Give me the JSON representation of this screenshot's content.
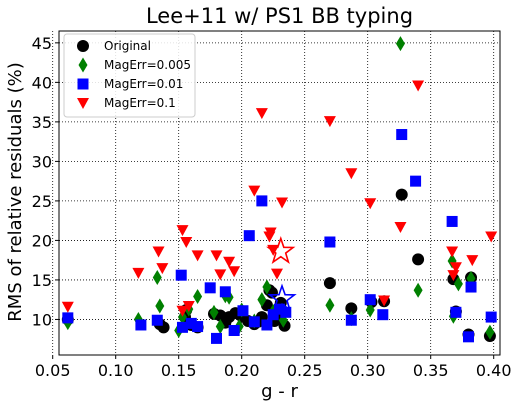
{
  "chart_data": {
    "type": "scatter",
    "title": "Lee+11 w/ PS1 BB typing",
    "xlabel": "g - r",
    "ylabel": "RMS of relative residuals (%)",
    "xlim": [
      0.055,
      0.405
    ],
    "ylim": [
      5.5,
      46.5
    ],
    "xticks": [
      "0.05",
      "0.10",
      "0.15",
      "0.20",
      "0.25",
      "0.30",
      "0.35",
      "0.40"
    ],
    "yticks": [
      "10",
      "15",
      "20",
      "25",
      "30",
      "35",
      "40",
      "45"
    ],
    "grid": true,
    "grid_style": "dotted",
    "legend_position": "top-left",
    "series": [
      {
        "name": "Original",
        "marker": "circle",
        "color": "#000000",
        "points": [
          [
            0.062,
            10.0
          ],
          [
            0.135,
            9.4
          ],
          [
            0.138,
            9.0
          ],
          [
            0.155,
            10.3
          ],
          [
            0.156,
            11.2
          ],
          [
            0.16,
            9.3
          ],
          [
            0.165,
            9.0
          ],
          [
            0.178,
            10.7
          ],
          [
            0.183,
            10.5
          ],
          [
            0.187,
            9.6
          ],
          [
            0.19,
            10.3
          ],
          [
            0.195,
            10.8
          ],
          [
            0.2,
            10.4
          ],
          [
            0.205,
            9.8
          ],
          [
            0.21,
            9.4
          ],
          [
            0.213,
            9.7
          ],
          [
            0.216,
            10.3
          ],
          [
            0.22,
            11.8
          ],
          [
            0.222,
            13.7
          ],
          [
            0.224,
            13.4
          ],
          [
            0.226,
            9.8
          ],
          [
            0.228,
            10.6
          ],
          [
            0.231,
            12.1
          ],
          [
            0.234,
            9.2
          ],
          [
            0.27,
            14.6
          ],
          [
            0.287,
            11.4
          ],
          [
            0.303,
            12.2
          ],
          [
            0.313,
            12.3
          ],
          [
            0.327,
            25.8
          ],
          [
            0.34,
            17.6
          ],
          [
            0.368,
            15.1
          ],
          [
            0.37,
            11.0
          ],
          [
            0.382,
            15.3
          ],
          [
            0.38,
            8.1
          ],
          [
            0.397,
            7.9
          ]
        ]
      },
      {
        "name": "MagErr=0.005",
        "marker": "diamond",
        "color": "#008000",
        "points": [
          [
            0.062,
            9.6
          ],
          [
            0.118,
            10.0
          ],
          [
            0.135,
            11.7
          ],
          [
            0.133,
            15.3
          ],
          [
            0.15,
            8.6
          ],
          [
            0.153,
            10.3
          ],
          [
            0.158,
            11.3
          ],
          [
            0.165,
            12.9
          ],
          [
            0.178,
            10.9
          ],
          [
            0.183,
            9.1
          ],
          [
            0.187,
            13.0
          ],
          [
            0.19,
            12.8
          ],
          [
            0.198,
            9.1
          ],
          [
            0.2,
            11.2
          ],
          [
            0.21,
            9.8
          ],
          [
            0.216,
            12.5
          ],
          [
            0.22,
            14.1
          ],
          [
            0.225,
            11.0
          ],
          [
            0.233,
            9.9
          ],
          [
            0.27,
            11.8
          ],
          [
            0.287,
            10.1
          ],
          [
            0.302,
            11.2
          ],
          [
            0.326,
            44.9
          ],
          [
            0.34,
            13.7
          ],
          [
            0.367,
            17.4
          ],
          [
            0.368,
            10.4
          ],
          [
            0.372,
            14.5
          ],
          [
            0.382,
            15.2
          ],
          [
            0.397,
            8.4
          ]
        ]
      },
      {
        "name": "MagErr=0.01",
        "marker": "square",
        "color": "#0000ff",
        "points": [
          [
            0.062,
            10.2
          ],
          [
            0.12,
            9.3
          ],
          [
            0.133,
            9.9
          ],
          [
            0.152,
            15.6
          ],
          [
            0.153,
            9.0
          ],
          [
            0.16,
            9.5
          ],
          [
            0.165,
            9.1
          ],
          [
            0.175,
            14.0
          ],
          [
            0.18,
            7.6
          ],
          [
            0.187,
            13.5
          ],
          [
            0.194,
            8.6
          ],
          [
            0.201,
            11.1
          ],
          [
            0.206,
            20.6
          ],
          [
            0.21,
            9.7
          ],
          [
            0.216,
            25.0
          ],
          [
            0.22,
            9.3
          ],
          [
            0.225,
            10.6
          ],
          [
            0.23,
            11.3
          ],
          [
            0.235,
            10.9
          ],
          [
            0.27,
            19.8
          ],
          [
            0.287,
            9.9
          ],
          [
            0.302,
            12.5
          ],
          [
            0.312,
            10.6
          ],
          [
            0.327,
            33.4
          ],
          [
            0.338,
            27.5
          ],
          [
            0.367,
            22.4
          ],
          [
            0.37,
            10.9
          ],
          [
            0.382,
            14.1
          ],
          [
            0.38,
            7.8
          ],
          [
            0.398,
            10.3
          ]
        ]
      },
      {
        "name": "MagErr=0.1",
        "marker": "triangle-down",
        "color": "#ff0000",
        "points": [
          [
            0.062,
            11.6
          ],
          [
            0.118,
            15.9
          ],
          [
            0.134,
            18.6
          ],
          [
            0.137,
            16.5
          ],
          [
            0.153,
            21.3
          ],
          [
            0.156,
            19.8
          ],
          [
            0.153,
            11.1
          ],
          [
            0.158,
            11.7
          ],
          [
            0.165,
            18.1
          ],
          [
            0.18,
            18.1
          ],
          [
            0.183,
            15.7
          ],
          [
            0.19,
            17.3
          ],
          [
            0.194,
            16.1
          ],
          [
            0.21,
            26.3
          ],
          [
            0.216,
            36.1
          ],
          [
            0.222,
            20.5
          ],
          [
            0.223,
            21.0
          ],
          [
            0.225,
            18.8
          ],
          [
            0.228,
            15.8
          ],
          [
            0.232,
            24.8
          ],
          [
            0.27,
            35.1
          ],
          [
            0.287,
            28.5
          ],
          [
            0.302,
            24.7
          ],
          [
            0.313,
            12.4
          ],
          [
            0.326,
            21.7
          ],
          [
            0.34,
            39.6
          ],
          [
            0.367,
            18.6
          ],
          [
            0.37,
            16.6
          ],
          [
            0.368,
            15.6
          ],
          [
            0.383,
            17.5
          ],
          [
            0.398,
            20.5
          ]
        ]
      },
      {
        "name": "",
        "marker": "star-open",
        "color": "#ff0000",
        "points": [
          [
            0.231,
            18.6
          ]
        ]
      },
      {
        "name": "",
        "marker": "star-open",
        "color": "#0000ff",
        "points": [
          [
            0.232,
            12.6
          ]
        ]
      }
    ]
  }
}
